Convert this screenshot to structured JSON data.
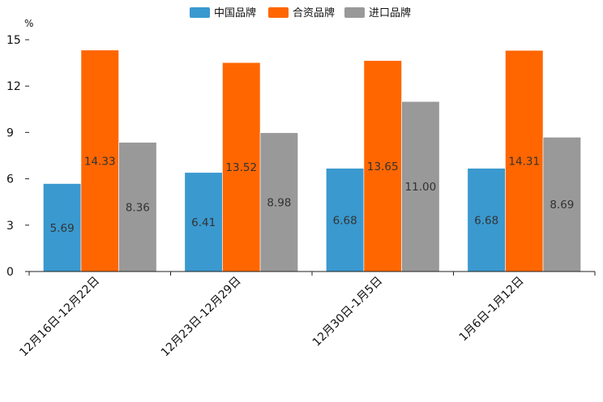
{
  "chart_data": {
    "type": "bar",
    "title": "",
    "xlabel": "",
    "ylabel": "",
    "unit": "%",
    "ylim": [
      0,
      15
    ],
    "yticks": [
      0,
      3,
      6,
      9,
      12,
      15
    ],
    "categories": [
      "12月16日-12月22日",
      "12月23日-12月29日",
      "12月30日-1月5日",
      "1月6日-1月12日"
    ],
    "series": [
      {
        "name": "中国品牌",
        "color": "#3a99cf",
        "values": [
          5.69,
          6.41,
          6.68,
          6.68
        ],
        "labels": [
          "5.69",
          "6.41",
          "6.68",
          "6.68"
        ]
      },
      {
        "name": "合资品牌",
        "color": "#ff6600",
        "values": [
          14.33,
          13.52,
          13.65,
          14.31
        ],
        "labels": [
          "14.33",
          "13.52",
          "13.65",
          "14.31"
        ]
      },
      {
        "name": "进口品牌",
        "color": "#999999",
        "values": [
          8.36,
          8.98,
          11.0,
          8.69
        ],
        "labels": [
          "8.36",
          "8.98",
          "11.00",
          "8.69"
        ]
      }
    ],
    "legend_position": "top-center",
    "grid": false
  }
}
